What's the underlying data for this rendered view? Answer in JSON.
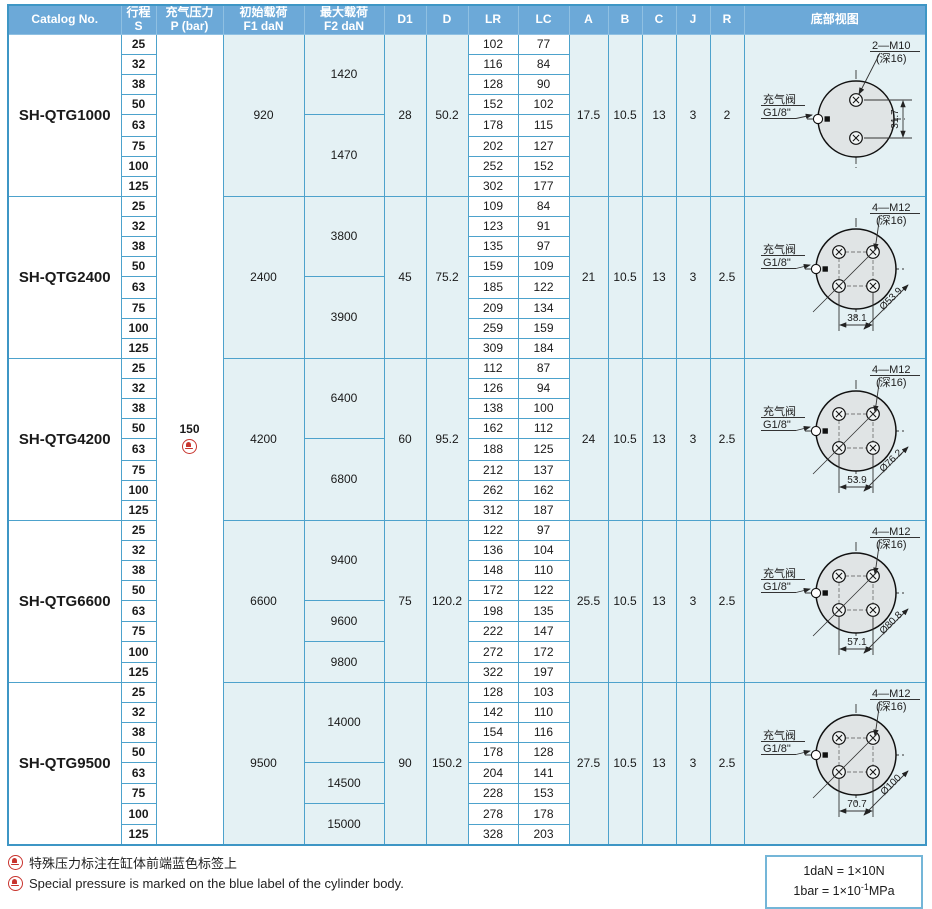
{
  "table": {
    "columns": [
      {
        "id": "catalog",
        "lines": [
          "Catalog No."
        ]
      },
      {
        "id": "stroke",
        "lines": [
          "行程",
          "S"
        ]
      },
      {
        "id": "pressure",
        "lines": [
          "充气压力",
          "P (bar)"
        ]
      },
      {
        "id": "f1",
        "lines": [
          "初始载荷",
          "F1 daN"
        ]
      },
      {
        "id": "f2",
        "lines": [
          "最大载荷",
          "F2 daN"
        ]
      },
      {
        "id": "d1",
        "lines": [
          "D1"
        ]
      },
      {
        "id": "d",
        "lines": [
          "D"
        ]
      },
      {
        "id": "lr",
        "lines": [
          "LR"
        ]
      },
      {
        "id": "lc",
        "lines": [
          "LC"
        ]
      },
      {
        "id": "a",
        "lines": [
          "A"
        ]
      },
      {
        "id": "b",
        "lines": [
          "B"
        ]
      },
      {
        "id": "c",
        "lines": [
          "C"
        ]
      },
      {
        "id": "j",
        "lines": [
          "J"
        ]
      },
      {
        "id": "r",
        "lines": [
          "R"
        ]
      },
      {
        "id": "view",
        "lines": [
          "底部视图"
        ]
      }
    ],
    "pressure": {
      "value": "150",
      "icon": "bell-alert-icon"
    },
    "groups": [
      {
        "catalog": "SH-QTG1000",
        "strokes": [
          "25",
          "32",
          "38",
          "50",
          "63",
          "75",
          "100",
          "125"
        ],
        "f1": "920",
        "f2_spans": [
          {
            "rows": 4,
            "value": "1420"
          },
          {
            "rows": 4,
            "value": "1470"
          }
        ],
        "d1": "28",
        "d": "50.2",
        "lr": [
          "102",
          "116",
          "128",
          "152",
          "178",
          "202",
          "252",
          "302"
        ],
        "lc": [
          "77",
          "84",
          "90",
          "102",
          "115",
          "127",
          "152",
          "177"
        ],
        "a": "17.5",
        "b": "10.5",
        "c": "13",
        "j": "3",
        "r": "2",
        "diagram": {
          "holes": 2,
          "thread": "2—M10",
          "depth": "(深16)",
          "valve1": "充气阀",
          "valve2": "G1/8\"",
          "dim_v": "31.7"
        }
      },
      {
        "catalog": "SH-QTG2400",
        "strokes": [
          "25",
          "32",
          "38",
          "50",
          "63",
          "75",
          "100",
          "125"
        ],
        "f1": "2400",
        "f2_spans": [
          {
            "rows": 4,
            "value": "3800"
          },
          {
            "rows": 4,
            "value": "3900"
          }
        ],
        "d1": "45",
        "d": "75.2",
        "lr": [
          "109",
          "123",
          "135",
          "159",
          "185",
          "209",
          "259",
          "309"
        ],
        "lc": [
          "84",
          "91",
          "97",
          "109",
          "122",
          "134",
          "159",
          "184"
        ],
        "a": "21",
        "b": "10.5",
        "c": "13",
        "j": "3",
        "r": "2.5",
        "diagram": {
          "holes": 4,
          "thread": "4—M12",
          "depth": "(深16)",
          "valve1": "充气阀",
          "valve2": "G1/8\"",
          "dim_h": "38.1",
          "dim_diag": "Ø53.9"
        }
      },
      {
        "catalog": "SH-QTG4200",
        "strokes": [
          "25",
          "32",
          "38",
          "50",
          "63",
          "75",
          "100",
          "125"
        ],
        "f1": "4200",
        "f2_spans": [
          {
            "rows": 4,
            "value": "6400"
          },
          {
            "rows": 4,
            "value": "6800"
          }
        ],
        "d1": "60",
        "d": "95.2",
        "lr": [
          "112",
          "126",
          "138",
          "162",
          "188",
          "212",
          "262",
          "312"
        ],
        "lc": [
          "87",
          "94",
          "100",
          "112",
          "125",
          "137",
          "162",
          "187"
        ],
        "a": "24",
        "b": "10.5",
        "c": "13",
        "j": "3",
        "r": "2.5",
        "diagram": {
          "holes": 4,
          "thread": "4—M12",
          "depth": "(深16)",
          "valve1": "充气阀",
          "valve2": "G1/8\"",
          "dim_h": "53.9",
          "dim_diag": "Ø76.2"
        }
      },
      {
        "catalog": "SH-QTG6600",
        "strokes": [
          "25",
          "32",
          "38",
          "50",
          "63",
          "75",
          "100",
          "125"
        ],
        "f1": "6600",
        "f2_spans": [
          {
            "rows": 4,
            "value": "9400"
          },
          {
            "rows": 2,
            "value": "9600"
          },
          {
            "rows": 2,
            "value": "9800"
          }
        ],
        "d1": "75",
        "d": "120.2",
        "lr": [
          "122",
          "136",
          "148",
          "172",
          "198",
          "222",
          "272",
          "322"
        ],
        "lc": [
          "97",
          "104",
          "110",
          "122",
          "135",
          "147",
          "172",
          "197"
        ],
        "a": "25.5",
        "b": "10.5",
        "c": "13",
        "j": "3",
        "r": "2.5",
        "diagram": {
          "holes": 4,
          "thread": "4—M12",
          "depth": "(深16)",
          "valve1": "充气阀",
          "valve2": "G1/8\"",
          "dim_h": "57.1",
          "dim_diag": "Ø80.8"
        }
      },
      {
        "catalog": "SH-QTG9500",
        "strokes": [
          "25",
          "32",
          "38",
          "50",
          "63",
          "75",
          "100",
          "125"
        ],
        "f1": "9500",
        "f2_spans": [
          {
            "rows": 4,
            "value": "14000"
          },
          {
            "rows": 2,
            "value": "14500"
          },
          {
            "rows": 2,
            "value": "15000"
          }
        ],
        "d1": "90",
        "d": "150.2",
        "lr": [
          "128",
          "142",
          "154",
          "178",
          "204",
          "228",
          "278",
          "328"
        ],
        "lc": [
          "103",
          "110",
          "116",
          "128",
          "141",
          "153",
          "178",
          "203"
        ],
        "a": "27.5",
        "b": "10.5",
        "c": "13",
        "j": "3",
        "r": "2.5",
        "diagram": {
          "holes": 4,
          "thread": "4—M12",
          "depth": "(深16)",
          "valve1": "充气阀",
          "valve2": "G1/8\"",
          "dim_h": "70.7",
          "dim_diag": "Ø100"
        }
      }
    ]
  },
  "notes": [
    {
      "icon": "bell-alert-icon",
      "text": "特殊压力标注在缸体前端蓝色标签上"
    },
    {
      "icon": "bell-alert-icon",
      "text": "Special pressure is marked on the blue label of the cylinder body."
    }
  ],
  "conversion_box": {
    "line1": "1daN = 1×10N",
    "line2_prefix": "1bar = 1×10",
    "line2_sup": "-1",
    "line2_suffix": "MPa"
  },
  "colors": {
    "header_bg": "#6CA9D8",
    "grid_border": "#4DA2CC",
    "outer_border": "#3E96C5",
    "cell_tint": "#E4F1F4",
    "accent_red": "#C8342E",
    "diagram_fill": "#E0E4E5"
  }
}
